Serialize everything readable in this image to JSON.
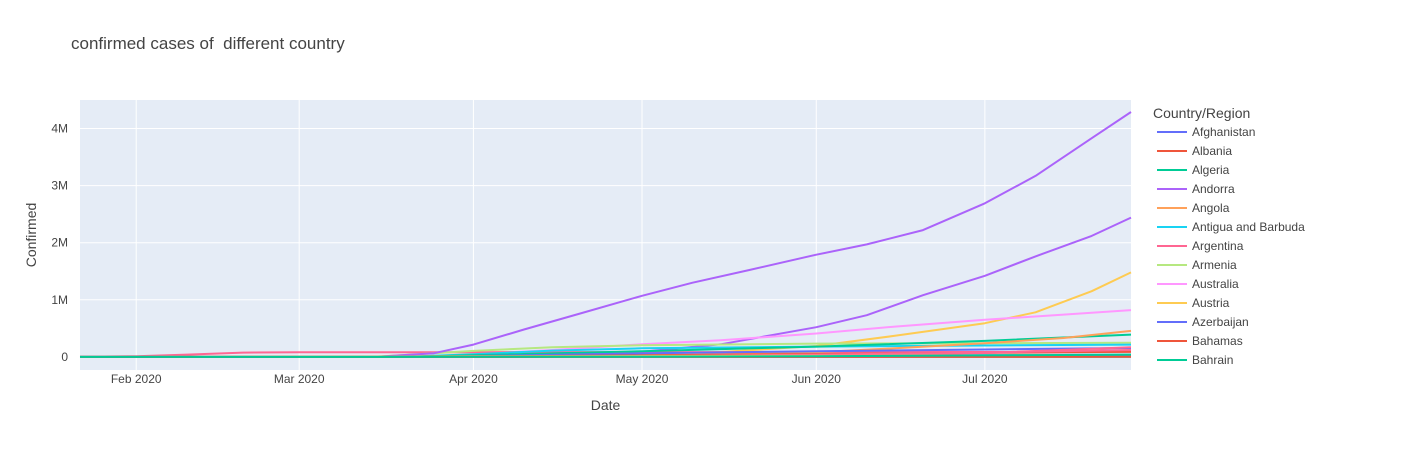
{
  "chart_data": {
    "type": "line",
    "title": "confirmed cases of  different country",
    "xlabel": "Date",
    "ylabel": "Confirmed",
    "legend_title": "Country/Region",
    "legend_placement": "right",
    "grid": true,
    "x_range": [
      "2020-01-22",
      "2020-07-27"
    ],
    "ylim": [
      -230000,
      4500000
    ],
    "x_ticks": [
      {
        "date": "2020-02-01",
        "label": "Feb 2020"
      },
      {
        "date": "2020-03-01",
        "label": "Mar 2020"
      },
      {
        "date": "2020-04-01",
        "label": "Apr 2020"
      },
      {
        "date": "2020-05-01",
        "label": "May 2020"
      },
      {
        "date": "2020-06-01",
        "label": "Jun 2020"
      },
      {
        "date": "2020-07-01",
        "label": "Jul 2020"
      }
    ],
    "y_ticks": [
      {
        "value": 0,
        "label": "0"
      },
      {
        "value": 1000000,
        "label": "1M"
      },
      {
        "value": 2000000,
        "label": "2M"
      },
      {
        "value": 3000000,
        "label": "3M"
      },
      {
        "value": 4000000,
        "label": "4M"
      }
    ],
    "series": [
      {
        "name": "Afghanistan",
        "color": "#636efa",
        "points": [
          [
            "2020-01-22",
            0
          ],
          [
            "2020-04-01",
            0
          ],
          [
            "2020-05-01",
            2200
          ],
          [
            "2020-06-01",
            16000
          ],
          [
            "2020-07-01",
            31000
          ],
          [
            "2020-07-27",
            36000
          ]
        ]
      },
      {
        "name": "Albania",
        "color": "#EF553B",
        "points": [
          [
            "2020-01-22",
            0
          ],
          [
            "2020-04-01",
            250
          ],
          [
            "2020-05-01",
            800
          ],
          [
            "2020-06-01",
            1100
          ],
          [
            "2020-07-01",
            2600
          ],
          [
            "2020-07-27",
            5000
          ]
        ]
      },
      {
        "name": "Algeria",
        "color": "#00cc96",
        "points": [
          [
            "2020-01-22",
            0
          ],
          [
            "2020-04-01",
            850
          ],
          [
            "2020-05-01",
            4000
          ],
          [
            "2020-06-01",
            9500
          ],
          [
            "2020-07-01",
            14000
          ],
          [
            "2020-07-27",
            28000
          ]
        ]
      },
      {
        "name": "Andorra",
        "color": "#ab63fa",
        "points": [
          [
            "2020-01-22",
            0
          ],
          [
            "2020-03-01",
            70
          ],
          [
            "2020-03-15",
            3500
          ],
          [
            "2020-03-25",
            65000
          ],
          [
            "2020-04-01",
            215000
          ],
          [
            "2020-04-10",
            480000
          ],
          [
            "2020-04-20",
            760000
          ],
          [
            "2020-05-01",
            1070000
          ],
          [
            "2020-05-10",
            1300000
          ],
          [
            "2020-05-20",
            1520000
          ],
          [
            "2020-06-01",
            1790000
          ],
          [
            "2020-06-10",
            1970000
          ],
          [
            "2020-06-20",
            2220000
          ],
          [
            "2020-07-01",
            2690000
          ],
          [
            "2020-07-10",
            3170000
          ],
          [
            "2020-07-20",
            3830000
          ],
          [
            "2020-07-27",
            4290000
          ]
        ]
      },
      {
        "name": "Angola",
        "color": "#FFA15A",
        "points": [
          [
            "2020-01-22",
            0
          ],
          [
            "2020-04-01",
            8
          ],
          [
            "2020-05-01",
            30
          ],
          [
            "2020-06-01",
            86
          ],
          [
            "2020-07-01",
            284
          ],
          [
            "2020-07-27",
            950
          ]
        ]
      },
      {
        "name": "Antigua and Barbuda",
        "color": "#19d3f3",
        "points": [
          [
            "2020-01-22",
            0
          ],
          [
            "2020-04-01",
            7
          ],
          [
            "2020-05-01",
            24
          ],
          [
            "2020-06-01",
            26
          ],
          [
            "2020-07-01",
            68
          ],
          [
            "2020-07-27",
            86
          ]
        ]
      },
      {
        "name": "Argentina",
        "color": "#FF6692",
        "points": [
          [
            "2020-01-22",
            0
          ],
          [
            "2020-04-01",
            1050
          ],
          [
            "2020-05-01",
            4400
          ],
          [
            "2020-06-01",
            17400
          ],
          [
            "2020-07-01",
            67000
          ],
          [
            "2020-07-27",
            168000
          ]
        ]
      },
      {
        "name": "Armenia",
        "color": "#B6E880",
        "points": [
          [
            "2020-01-22",
            0
          ],
          [
            "2020-04-01",
            570
          ],
          [
            "2020-05-01",
            2100
          ],
          [
            "2020-06-01",
            10000
          ],
          [
            "2020-07-01",
            26000
          ],
          [
            "2020-07-27",
            37000
          ]
        ]
      },
      {
        "name": "Australia",
        "color": "#FF97FF",
        "points": [
          [
            "2020-01-22",
            0
          ],
          [
            "2020-04-01",
            4800
          ],
          [
            "2020-05-01",
            6800
          ],
          [
            "2020-06-01",
            7200
          ],
          [
            "2020-07-01",
            8000
          ],
          [
            "2020-07-27",
            14900
          ]
        ]
      },
      {
        "name": "Austria",
        "color": "#FECB52",
        "points": [
          [
            "2020-01-22",
            0
          ],
          [
            "2020-04-01",
            10700
          ],
          [
            "2020-05-01",
            15500
          ],
          [
            "2020-06-01",
            16700
          ],
          [
            "2020-07-01",
            17900
          ],
          [
            "2020-07-27",
            20300
          ]
        ]
      },
      {
        "name": "Azerbaijan",
        "color": "#636efa",
        "points": [
          [
            "2020-01-22",
            0
          ],
          [
            "2020-04-01",
            300
          ],
          [
            "2020-05-01",
            1800
          ],
          [
            "2020-06-01",
            5700
          ],
          [
            "2020-07-01",
            18000
          ],
          [
            "2020-07-27",
            31000
          ]
        ]
      },
      {
        "name": "Bahamas",
        "color": "#EF553B",
        "points": [
          [
            "2020-01-22",
            0
          ],
          [
            "2020-04-01",
            14
          ],
          [
            "2020-05-01",
            83
          ],
          [
            "2020-06-01",
            100
          ],
          [
            "2020-07-01",
            104
          ],
          [
            "2020-07-27",
            382
          ]
        ]
      },
      {
        "name": "Bahrain",
        "color": "#00cc96",
        "points": [
          [
            "2020-01-22",
            0
          ],
          [
            "2020-04-01",
            600
          ],
          [
            "2020-05-01",
            3200
          ],
          [
            "2020-06-01",
            12000
          ],
          [
            "2020-07-01",
            26000
          ],
          [
            "2020-07-27",
            39000
          ]
        ]
      }
    ],
    "unlisted_series": [
      {
        "color": "#ab63fa",
        "points": [
          [
            "2020-01-22",
            0
          ],
          [
            "2020-03-25",
            400
          ],
          [
            "2020-04-01",
            6000
          ],
          [
            "2020-04-15",
            25000
          ],
          [
            "2020-05-01",
            90000
          ],
          [
            "2020-05-15",
            220000
          ],
          [
            "2020-06-01",
            520000
          ],
          [
            "2020-06-10",
            730000
          ],
          [
            "2020-06-20",
            1080000
          ],
          [
            "2020-07-01",
            1420000
          ],
          [
            "2020-07-10",
            1760000
          ],
          [
            "2020-07-20",
            2120000
          ],
          [
            "2020-07-27",
            2440000
          ]
        ]
      },
      {
        "color": "#FECB52",
        "points": [
          [
            "2020-01-22",
            0
          ],
          [
            "2020-04-01",
            2000
          ],
          [
            "2020-05-01",
            35000
          ],
          [
            "2020-05-15",
            85000
          ],
          [
            "2020-06-01",
            190000
          ],
          [
            "2020-06-15",
            370000
          ],
          [
            "2020-07-01",
            590000
          ],
          [
            "2020-07-10",
            780000
          ],
          [
            "2020-07-20",
            1150000
          ],
          [
            "2020-07-27",
            1480000
          ]
        ]
      },
      {
        "color": "#FF97FF",
        "points": [
          [
            "2020-01-22",
            0
          ],
          [
            "2020-03-25",
            5000
          ],
          [
            "2020-04-01",
            45000
          ],
          [
            "2020-04-15",
            120000
          ],
          [
            "2020-05-01",
            220000
          ],
          [
            "2020-05-15",
            290000
          ],
          [
            "2020-06-01",
            410000
          ],
          [
            "2020-06-15",
            530000
          ],
          [
            "2020-07-01",
            650000
          ],
          [
            "2020-07-15",
            740000
          ],
          [
            "2020-07-27",
            820000
          ]
        ]
      },
      {
        "color": "#FF6692",
        "points": [
          [
            "2020-01-22",
            550
          ],
          [
            "2020-02-01",
            11800
          ],
          [
            "2020-02-10",
            40000
          ],
          [
            "2020-02-20",
            75000
          ],
          [
            "2020-03-01",
            80000
          ],
          [
            "2020-03-15",
            81000
          ],
          [
            "2020-04-01",
            82000
          ],
          [
            "2020-05-01",
            83000
          ],
          [
            "2020-06-01",
            84000
          ],
          [
            "2020-07-01",
            84800
          ],
          [
            "2020-07-27",
            86800
          ]
        ]
      },
      {
        "color": "#B6E880",
        "points": [
          [
            "2020-01-22",
            0
          ],
          [
            "2020-03-15",
            7000
          ],
          [
            "2020-04-01",
            105000
          ],
          [
            "2020-04-15",
            170000
          ],
          [
            "2020-05-01",
            205000
          ],
          [
            "2020-06-01",
            233000
          ],
          [
            "2020-07-01",
            240000
          ],
          [
            "2020-07-27",
            246000
          ]
        ]
      },
      {
        "color": "#19d3f3",
        "points": [
          [
            "2020-01-22",
            0
          ],
          [
            "2020-03-20",
            2000
          ],
          [
            "2020-04-01",
            45000
          ],
          [
            "2020-04-15",
            110000
          ],
          [
            "2020-05-01",
            150000
          ],
          [
            "2020-06-01",
            180000
          ],
          [
            "2020-07-01",
            200000
          ],
          [
            "2020-07-27",
            215000
          ]
        ]
      },
      {
        "color": "#00cc96",
        "points": [
          [
            "2020-01-22",
            0
          ],
          [
            "2020-03-20",
            1000
          ],
          [
            "2020-04-01",
            30000
          ],
          [
            "2020-05-01",
            100000
          ],
          [
            "2020-06-01",
            180000
          ],
          [
            "2020-07-01",
            280000
          ],
          [
            "2020-07-27",
            390000
          ]
        ]
      },
      {
        "color": "#FFA15A",
        "points": [
          [
            "2020-01-22",
            0
          ],
          [
            "2020-04-01",
            3000
          ],
          [
            "2020-05-01",
            20000
          ],
          [
            "2020-06-01",
            80000
          ],
          [
            "2020-06-15",
            150000
          ],
          [
            "2020-07-01",
            240000
          ],
          [
            "2020-07-15",
            330000
          ],
          [
            "2020-07-27",
            455000
          ]
        ]
      },
      {
        "color": "#636efa",
        "points": [
          [
            "2020-01-22",
            0
          ],
          [
            "2020-03-25",
            1000
          ],
          [
            "2020-04-01",
            15000
          ],
          [
            "2020-05-01",
            60000
          ],
          [
            "2020-06-01",
            100000
          ],
          [
            "2020-07-01",
            130000
          ],
          [
            "2020-07-27",
            155000
          ]
        ]
      },
      {
        "color": "#EF553B",
        "points": [
          [
            "2020-01-22",
            0
          ],
          [
            "2020-04-01",
            8000
          ],
          [
            "2020-05-01",
            25000
          ],
          [
            "2020-06-01",
            50000
          ],
          [
            "2020-07-01",
            70000
          ],
          [
            "2020-07-27",
            90000
          ]
        ]
      },
      {
        "color": "#FF6692",
        "points": [
          [
            "2020-01-22",
            0
          ],
          [
            "2020-04-01",
            1000
          ],
          [
            "2020-05-01",
            12000
          ],
          [
            "2020-06-01",
            40000
          ],
          [
            "2020-07-01",
            75000
          ],
          [
            "2020-07-27",
            120000
          ]
        ]
      }
    ]
  }
}
